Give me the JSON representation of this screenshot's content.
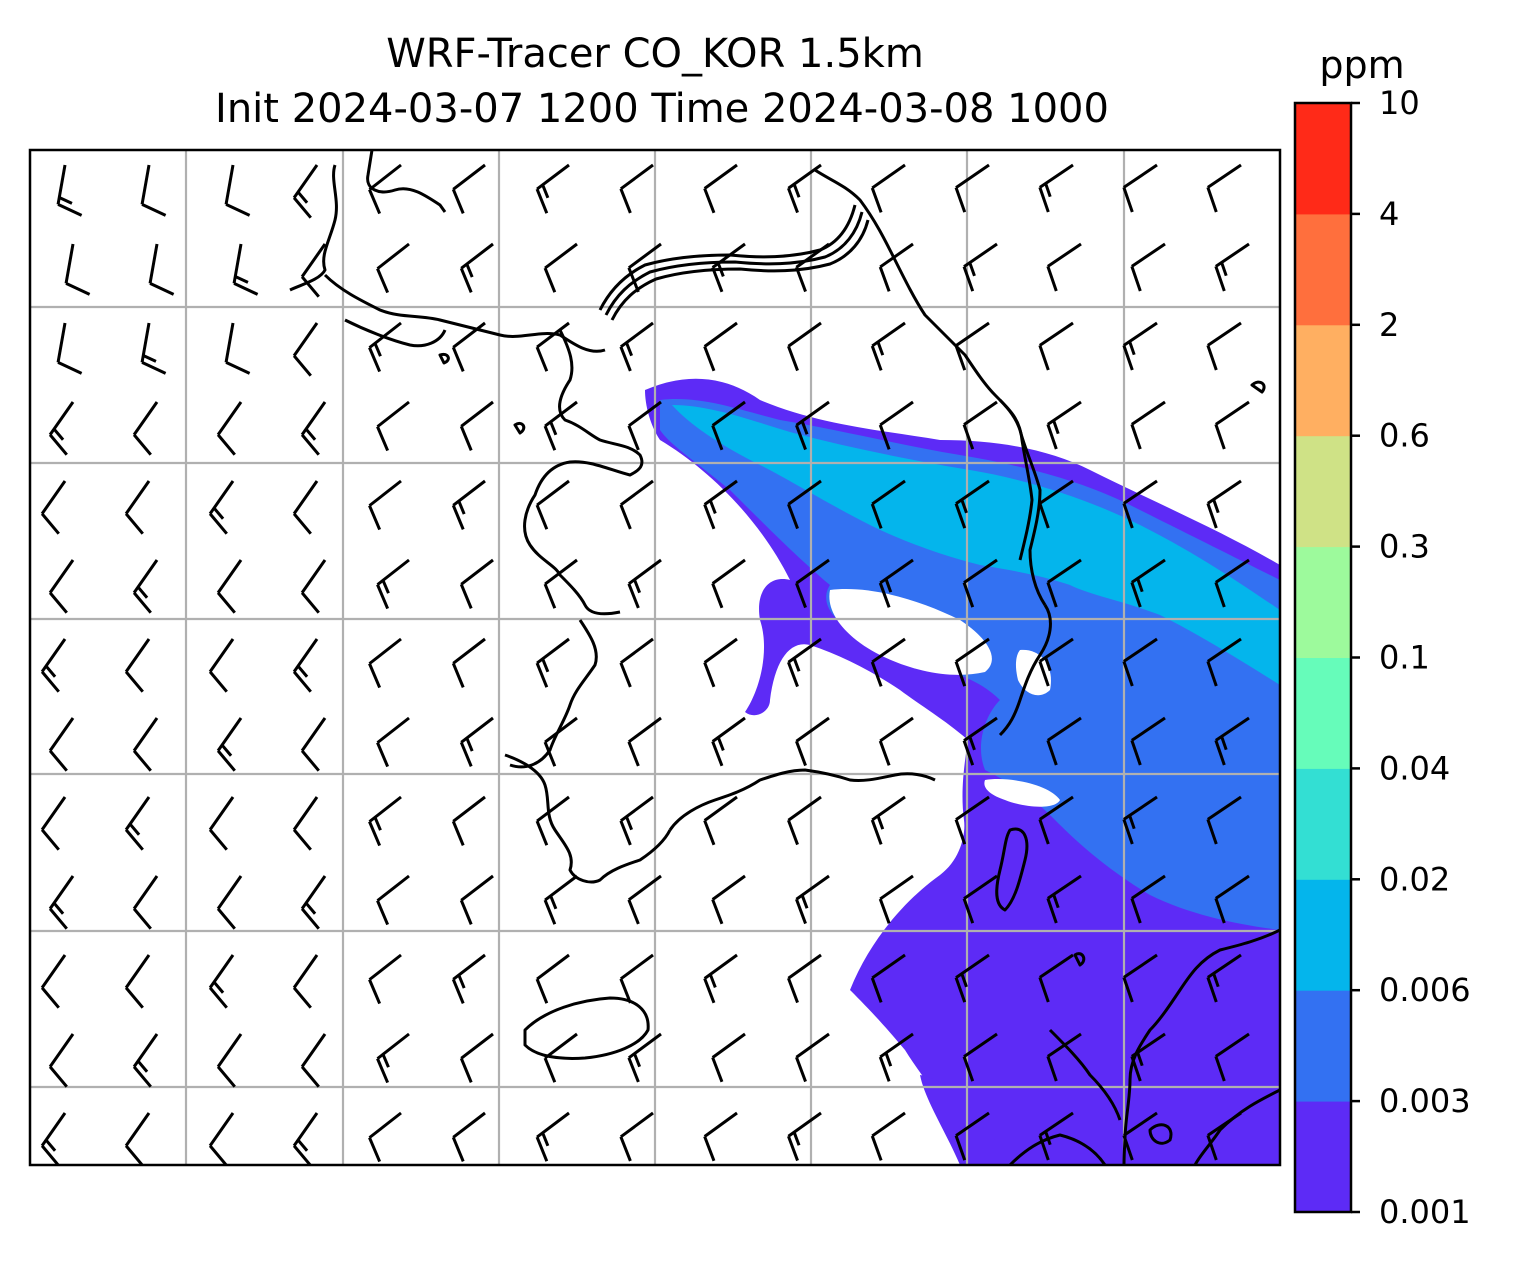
{
  "title": {
    "line1": "WRF-Tracer CO_KOR 1.5km",
    "line2": "Init 2024-03-07 1200 Time 2024-03-08 1000"
  },
  "colorbar": {
    "unit": "ppm",
    "levels": [
      "0.001",
      "0.003",
      "0.006",
      "0.02",
      "0.04",
      "0.1",
      "0.3",
      "0.6",
      "2",
      "4",
      "10"
    ],
    "colors": [
      "#5d2bf6",
      "#3371f2",
      "#04b5ec",
      "#33dfd3",
      "#66fcba",
      "#9dfa9c",
      "#cfe286",
      "#ffaf61",
      "#ff6f3d",
      "#ff2a18"
    ]
  },
  "map": {
    "background": "#ffffff",
    "grid_color": "#b0b0b0",
    "plume_colors": {
      "outer": "#5d2bf6",
      "middle": "#3371f2",
      "core": "#04b5ec"
    },
    "wind_barb_color": "#000000"
  }
}
